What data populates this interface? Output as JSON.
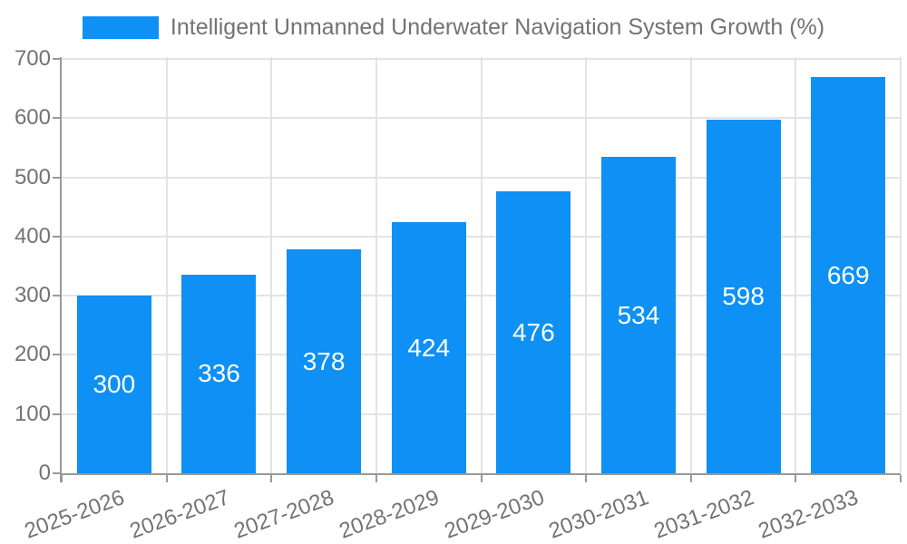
{
  "legend": {
    "label": "Intelligent Unmanned Underwater Navigation System Growth (%)",
    "swatch_color": "#0e90f5"
  },
  "chart_data": {
    "type": "bar",
    "title": "Intelligent Unmanned Underwater Navigation System Growth (%)",
    "categories": [
      "2025-2026",
      "2026-2027",
      "2027-2028",
      "2028-2029",
      "2029-2030",
      "2030-2031",
      "2031-2032",
      "2032-2033"
    ],
    "values": [
      300,
      336,
      378,
      424,
      476,
      534,
      598,
      669
    ],
    "xlabel": "",
    "ylabel": "",
    "ylim": [
      0,
      700
    ],
    "y_ticks": [
      0,
      100,
      200,
      300,
      400,
      500,
      600,
      700
    ],
    "x_label_rotation_deg": -20,
    "grid": true,
    "legend_position": "top",
    "value_labels_position": "inside-center",
    "colors": {
      "bar": "#0e90f5",
      "value_label": "#ffffff",
      "axis_text": "#737373",
      "grid": "#e3e3e3",
      "axis_line": "#999999",
      "background": "#ffffff"
    }
  }
}
